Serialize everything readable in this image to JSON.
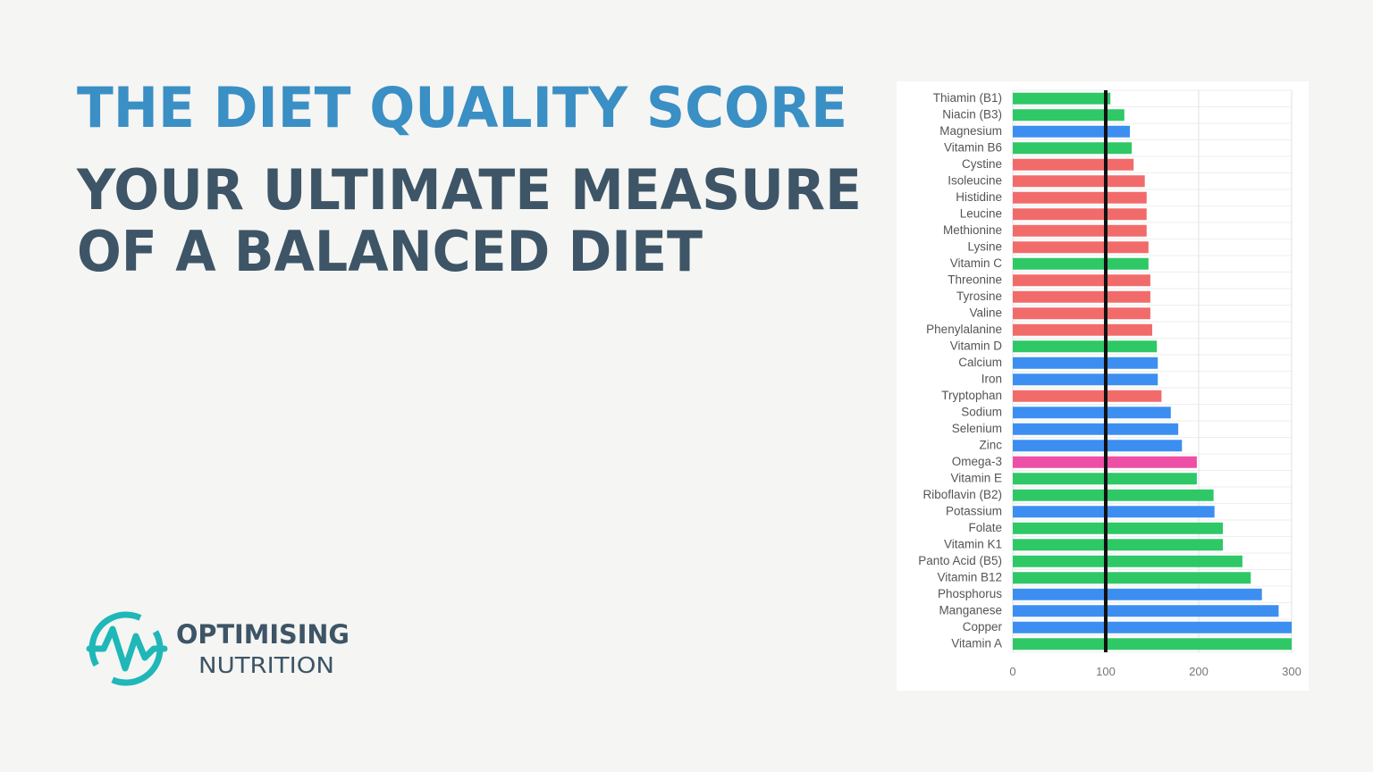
{
  "chart_data": {
    "type": "bar",
    "orientation": "horizontal",
    "title": "THE DIET QUALITY SCORE",
    "subtitle_lines": [
      "YOUR ULTIMATE MEASURE",
      "OF A BALANCED DIET"
    ],
    "categories": [
      "Thiamin (B1)",
      "Niacin (B3)",
      "Magnesium",
      "Vitamin B6",
      "Cystine",
      "Isoleucine",
      "Histidine",
      "Leucine",
      "Methionine",
      "Lysine",
      "Vitamin C",
      "Threonine",
      "Tyrosine",
      "Valine",
      "Phenylalanine",
      "Vitamin D",
      "Calcium",
      "Iron",
      "Tryptophan",
      "Sodium",
      "Selenium",
      "Zinc",
      "Omega-3",
      "Vitamin E",
      "Riboflavin (B2)",
      "Potassium",
      "Folate",
      "Vitamin K1",
      "Panto Acid (B5)",
      "Vitamin B12",
      "Phosphorus",
      "Manganese",
      "Copper",
      "Vitamin A"
    ],
    "values": [
      105,
      120,
      126,
      128,
      130,
      142,
      144,
      144,
      144,
      146,
      146,
      148,
      148,
      148,
      150,
      155,
      156,
      156,
      160,
      170,
      178,
      182,
      198,
      198,
      216,
      217,
      226,
      226,
      247,
      256,
      268,
      286,
      300,
      300
    ],
    "colors": [
      "#2ec866",
      "#2ec866",
      "#3c8ff0",
      "#2ec866",
      "#f26b6b",
      "#f26b6b",
      "#f26b6b",
      "#f26b6b",
      "#f26b6b",
      "#f26b6b",
      "#2ec866",
      "#f26b6b",
      "#f26b6b",
      "#f26b6b",
      "#f26b6b",
      "#2ec866",
      "#3c8ff0",
      "#3c8ff0",
      "#f26b6b",
      "#3c8ff0",
      "#3c8ff0",
      "#3c8ff0",
      "#ee4fa6",
      "#2ec866",
      "#2ec866",
      "#3c8ff0",
      "#2ec866",
      "#2ec866",
      "#2ec866",
      "#2ec866",
      "#3c8ff0",
      "#3c8ff0",
      "#3c8ff0",
      "#2ec866"
    ],
    "xlim": [
      0,
      300
    ],
    "xticks": [
      0,
      100,
      200,
      300
    ],
    "grid": true,
    "reference_line": 100
  },
  "logo": {
    "line1": "OPTIMISING",
    "line2": "NUTRITION"
  }
}
